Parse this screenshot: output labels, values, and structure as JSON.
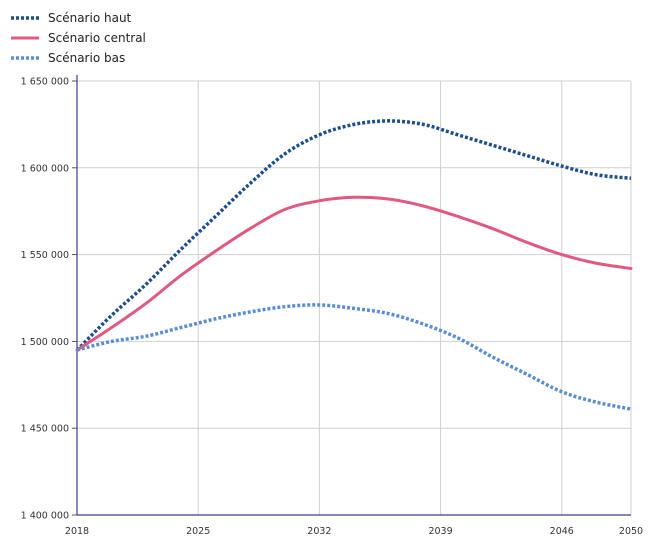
{
  "chart_data": {
    "type": "line",
    "title": "",
    "xlabel": "",
    "ylabel": "",
    "xlim": [
      2018,
      2050
    ],
    "ylim": [
      1400000,
      1650000
    ],
    "x_ticks": [
      2018,
      2025,
      2032,
      2039,
      2046,
      2050
    ],
    "y_ticks": [
      1400000,
      1450000,
      1500000,
      1550000,
      1600000,
      1650000
    ],
    "x_tick_labels": [
      "2018",
      "2025",
      "2032",
      "2039",
      "2046",
      "2050"
    ],
    "y_tick_labels": [
      "1 400 000",
      "1 450 000",
      "1 500 000",
      "1 550 000",
      "1 600 000",
      "1 650 000"
    ],
    "grid": true,
    "legend_position": "top-left",
    "x": [
      2018,
      2020,
      2022,
      2024,
      2026,
      2028,
      2030,
      2032,
      2034,
      2036,
      2038,
      2040,
      2042,
      2044,
      2046,
      2048,
      2050
    ],
    "series": [
      {
        "name": "Scénario haut",
        "color": "#1f4e8c",
        "style": "dotted",
        "values": [
          1495000,
          1515000,
          1533000,
          1553000,
          1572000,
          1591000,
          1608000,
          1619000,
          1625000,
          1627000,
          1625000,
          1619000,
          1613000,
          1607000,
          1601000,
          1596000,
          1594000
        ]
      },
      {
        "name": "Scénario central",
        "color": "#e05a80",
        "style": "solid",
        "values": [
          1495000,
          1508000,
          1522000,
          1538000,
          1552000,
          1565000,
          1576000,
          1581000,
          1583000,
          1582000,
          1578000,
          1572000,
          1565000,
          1557000,
          1550000,
          1545000,
          1542000
        ]
      },
      {
        "name": "Scénario bas",
        "color": "#5b8dd1",
        "style": "dotted",
        "values": [
          1495000,
          1500000,
          1503000,
          1508000,
          1513000,
          1517000,
          1520000,
          1521000,
          1519000,
          1516000,
          1510000,
          1502000,
          1491000,
          1481000,
          1471000,
          1465000,
          1461000
        ]
      }
    ]
  }
}
